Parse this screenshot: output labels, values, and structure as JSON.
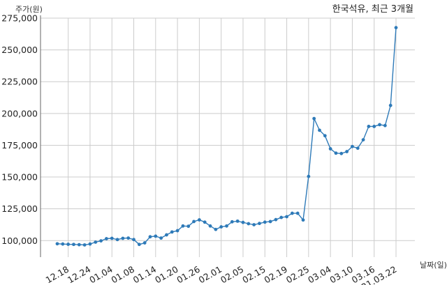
{
  "chart_data": {
    "type": "line",
    "title": "한국석유, 최근 3개월",
    "xlabel": "날짜(일)",
    "ylabel": "주가(원)",
    "ylim": [
      87000,
      275000
    ],
    "yticks": [
      100000,
      125000,
      150000,
      175000,
      200000,
      225000,
      250000,
      275000
    ],
    "ytick_labels": [
      "100,000",
      "125,000",
      "150,000",
      "175,000",
      "200,000",
      "225,000",
      "250,000",
      "275,000"
    ],
    "grid": true,
    "xtick_labels": [
      "12.18",
      "12.24",
      "01.04",
      "01.08",
      "01.14",
      "01.20",
      "01.26",
      "02.01",
      "02.05",
      "02.15",
      "02.19",
      "02.25",
      "03.04",
      "03.10",
      "03.16",
      "21.03.22"
    ],
    "xtick_index": [
      2,
      6,
      10,
      14,
      18,
      22,
      26,
      30,
      34,
      38,
      42,
      46,
      50,
      54,
      58,
      62
    ],
    "series": [
      {
        "color": "#2e7ab8",
        "values": [
          97500,
          97300,
          97100,
          97000,
          96800,
          96600,
          97300,
          98800,
          99800,
          101500,
          101800,
          100800,
          101800,
          102000,
          100800,
          97000,
          98200,
          103000,
          103500,
          102000,
          104500,
          106800,
          107800,
          111500,
          111300,
          115000,
          116300,
          114500,
          111500,
          108800,
          110800,
          111500,
          114800,
          115300,
          114300,
          113300,
          112500,
          113500,
          114500,
          115000,
          116500,
          118200,
          118800,
          121500,
          121500,
          116200,
          150500,
          196000,
          186800,
          182500,
          172200,
          168800,
          168500,
          170000,
          174000,
          172700,
          179300,
          189800,
          189800,
          191200,
          190500,
          206300,
          267500
        ]
      }
    ]
  }
}
